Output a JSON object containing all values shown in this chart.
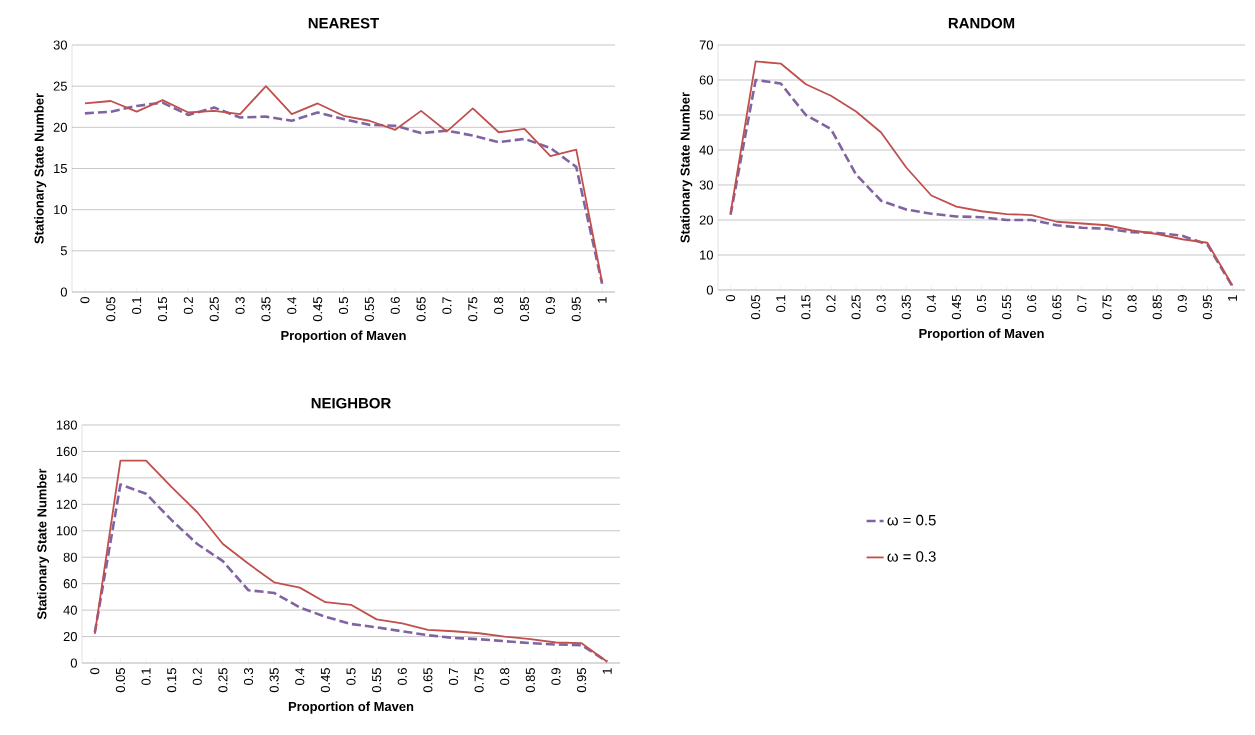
{
  "chart_data": [
    {
      "type": "line",
      "title": "NEAREST",
      "xlabel": "Proportion of Maven",
      "ylabel": "Stationary State Number",
      "categories": [
        "0",
        "0.05",
        "0.1",
        "0.15",
        "0.2",
        "0.25",
        "0.3",
        "0.35",
        "0.4",
        "0.45",
        "0.5",
        "0.55",
        "0.6",
        "0.65",
        "0.7",
        "0.75",
        "0.8",
        "0.85",
        "0.9",
        "0.95",
        "1"
      ],
      "ylim": [
        0,
        30
      ],
      "yticks": [
        0,
        5,
        10,
        15,
        20,
        25,
        30
      ],
      "grid": "y",
      "legend": false,
      "series": [
        {
          "color": "#8064a2",
          "line_style": "dashed",
          "values": [
            21.7,
            21.9,
            22.6,
            23.0,
            21.5,
            22.4,
            21.2,
            21.3,
            20.8,
            21.8,
            21.0,
            20.3,
            20.2,
            19.3,
            19.6,
            19.0,
            18.2,
            18.6,
            17.5,
            15.2,
            1.0
          ]
        },
        {
          "color": "#c0504d",
          "line_style": "solid",
          "values": [
            22.9,
            23.2,
            21.9,
            23.3,
            21.8,
            22.0,
            21.6,
            25.0,
            21.6,
            22.9,
            21.4,
            20.8,
            19.7,
            22.0,
            19.5,
            22.3,
            19.4,
            19.8,
            16.5,
            17.3,
            1.2
          ]
        }
      ]
    },
    {
      "type": "line",
      "title": "RANDOM",
      "xlabel": "Proportion of Maven",
      "ylabel": "Stationary State Number",
      "categories": [
        "0",
        "0.05",
        "0.1",
        "0.15",
        "0.2",
        "0.25",
        "0.3",
        "0.35",
        "0.4",
        "0.45",
        "0.5",
        "0.55",
        "0.6",
        "0.65",
        "0.7",
        "0.75",
        "0.8",
        "0.85",
        "0.9",
        "0.95",
        "1"
      ],
      "ylim": [
        0,
        70
      ],
      "yticks": [
        0,
        10,
        20,
        30,
        40,
        50,
        60,
        70
      ],
      "grid": "y",
      "legend": false,
      "series": [
        {
          "color": "#8064a2",
          "line_style": "dashed",
          "values": [
            21.5,
            60,
            59,
            50,
            46,
            33,
            25.5,
            23,
            21.8,
            21,
            20.8,
            20,
            20,
            18.5,
            17.8,
            17.5,
            16.5,
            16.3,
            15.5,
            13,
            1
          ]
        },
        {
          "color": "#c0504d",
          "line_style": "solid",
          "values": [
            22,
            65.3,
            64.7,
            58.8,
            55.5,
            51,
            45,
            35,
            27,
            23.8,
            22.5,
            21.7,
            21.4,
            19.5,
            19,
            18.5,
            17,
            16,
            14.5,
            13.5,
            1.3
          ]
        }
      ]
    },
    {
      "type": "line",
      "title": "NEIGHBOR",
      "xlabel": "Proportion of Maven",
      "ylabel": "Stationary State Number",
      "categories": [
        "0",
        "0.05",
        "0.1",
        "0.15",
        "0.2",
        "0.25",
        "0.3",
        "0.35",
        "0.4",
        "0.45",
        "0.5",
        "0.55",
        "0.6",
        "0.65",
        "0.7",
        "0.75",
        "0.8",
        "0.85",
        "0.9",
        "0.95",
        "1"
      ],
      "ylim": [
        0,
        180
      ],
      "yticks": [
        0,
        20,
        40,
        60,
        80,
        100,
        120,
        140,
        160,
        180
      ],
      "grid": "y",
      "legend": "right",
      "series": [
        {
          "name": "ω = 0.5",
          "color": "#8064a2",
          "line_style": "dashed",
          "values": [
            23,
            135,
            128,
            108,
            90,
            77,
            55,
            53,
            42,
            35,
            29.5,
            27,
            24,
            21,
            19,
            18,
            16.5,
            15,
            14,
            13.5,
            1
          ]
        },
        {
          "name": "ω = 0.3",
          "color": "#c0504d",
          "line_style": "solid",
          "values": [
            22,
            153,
            153,
            133,
            114,
            90,
            75,
            61,
            57,
            46,
            44,
            33,
            30,
            25,
            24,
            22.5,
            20,
            18,
            15.5,
            15,
            1
          ]
        }
      ]
    }
  ]
}
